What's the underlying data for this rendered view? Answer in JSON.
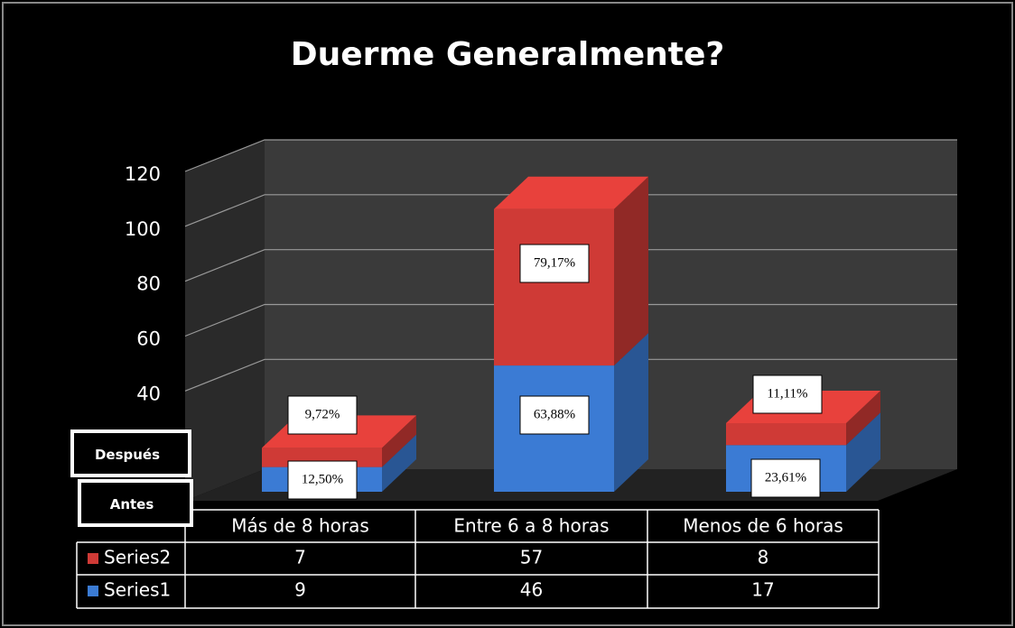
{
  "chart_data": {
    "type": "bar3d_stacked",
    "title": "Duerme Generalmente?",
    "categories": [
      "Más de 8 horas",
      "Entre 6 a 8 horas",
      "Menos de 6 horas"
    ],
    "series": [
      {
        "name": "Series1",
        "color": "#3b7bd4",
        "values": [
          9,
          46,
          17
        ]
      },
      {
        "name": "Series2",
        "color": "#cf3a36",
        "values": [
          7,
          57,
          8
        ]
      }
    ],
    "annotations": [
      [
        "12,50%",
        "63,88%",
        "23,61%"
      ],
      [
        "9,72%",
        "79,17%",
        "11,11%"
      ]
    ],
    "boxes": [
      "Después",
      "Antes"
    ],
    "ylim": [
      0,
      120
    ],
    "yticks": [
      40,
      60,
      80,
      100,
      120
    ],
    "grid": true
  }
}
